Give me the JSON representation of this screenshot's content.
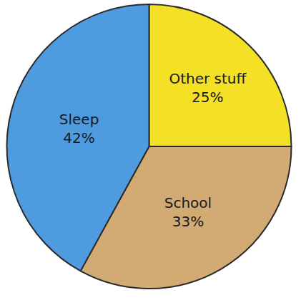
{
  "chart_data": {
    "type": "pie",
    "categories": [
      "Other stuff",
      "School",
      "Sleep"
    ],
    "values": [
      25,
      33,
      42
    ],
    "value_labels": [
      "25%",
      "33%",
      "42%"
    ],
    "colors": [
      "#f4e024",
      "#d2ab74",
      "#4f9be0"
    ],
    "data_labels": true
  }
}
